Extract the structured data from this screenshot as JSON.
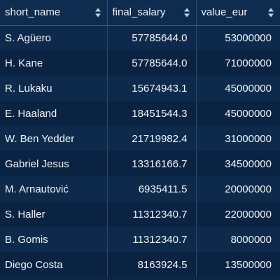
{
  "table": {
    "columns": [
      {
        "label": "short_name",
        "icon": "sort-icon"
      },
      {
        "label": "final_salary",
        "icon": "sort-icon"
      },
      {
        "label": "value_eur",
        "icon": "sort-icon"
      }
    ],
    "rows": [
      {
        "short_name": "S. Agüero",
        "final_salary": "57785644.0",
        "value_eur": "53000000"
      },
      {
        "short_name": "H. Kane",
        "final_salary": "57785644.0",
        "value_eur": "71000000"
      },
      {
        "short_name": "R. Lukaku",
        "final_salary": "15674943.1",
        "value_eur": "45000000"
      },
      {
        "short_name": "E. Haaland",
        "final_salary": "18451544.3",
        "value_eur": "45000000"
      },
      {
        "short_name": "W. Ben Yedder",
        "final_salary": "21719982.4",
        "value_eur": "31000000"
      },
      {
        "short_name": "Gabriel Jesus",
        "final_salary": "13316166.7",
        "value_eur": "34500000"
      },
      {
        "short_name": "M. Arnautović",
        "final_salary": "6935411.5",
        "value_eur": "20000000"
      },
      {
        "short_name": "S. Haller",
        "final_salary": "11312340.7",
        "value_eur": "22000000"
      },
      {
        "short_name": "B. Gomis",
        "final_salary": "11312340.7",
        "value_eur": "8000000"
      },
      {
        "short_name": "Diego Costa",
        "final_salary": "8163924.5",
        "value_eur": "13500000"
      }
    ]
  },
  "colors": {
    "background": "#0f2746",
    "header_background": "#0e2c4f",
    "row_odd": "#0d2a4c",
    "row_even": "#0b2342",
    "text": "#f1f5fa",
    "sort_icon": "#c7d3e2"
  }
}
